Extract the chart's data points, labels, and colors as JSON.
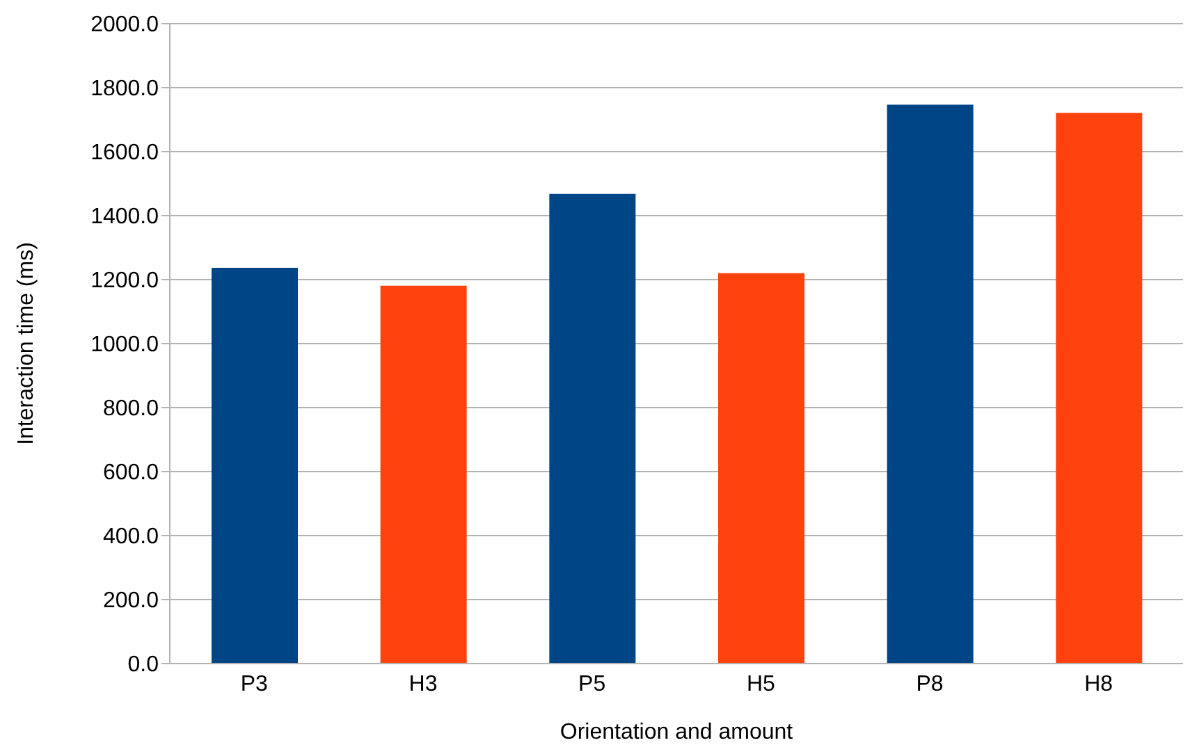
{
  "chart_data": {
    "type": "bar",
    "xlabel": "Orientation and amount",
    "ylabel": "Interaction time (ms)",
    "categories": [
      "P3",
      "H3",
      "P5",
      "H5",
      "P8",
      "H8"
    ],
    "values": [
      1237,
      1181,
      1468,
      1220,
      1747,
      1721
    ],
    "colors": [
      "#004586",
      "#ff420e",
      "#004586",
      "#ff420e",
      "#004586",
      "#ff420e"
    ],
    "ylim": [
      0,
      2000
    ],
    "yticks": [
      {
        "value": 0,
        "label": "0.0"
      },
      {
        "value": 200,
        "label": "200.0"
      },
      {
        "value": 400,
        "label": "400.0"
      },
      {
        "value": 600,
        "label": "600.0"
      },
      {
        "value": 800,
        "label": "800.0"
      },
      {
        "value": 1000,
        "label": "1000.0"
      },
      {
        "value": 1200,
        "label": "1200.0"
      },
      {
        "value": 1400,
        "label": "1400.0"
      },
      {
        "value": 1600,
        "label": "1600.0"
      },
      {
        "value": 1800,
        "label": "1800.0"
      },
      {
        "value": 2000,
        "label": "2000.0"
      }
    ],
    "grid": "y"
  }
}
